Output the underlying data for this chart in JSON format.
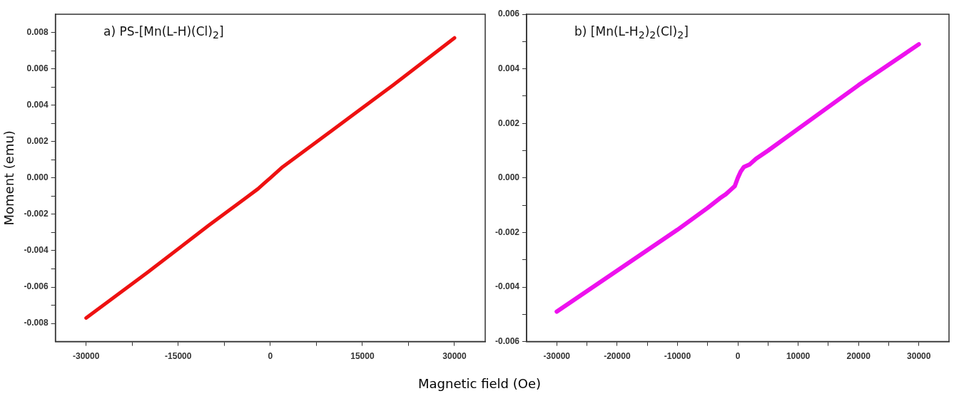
{
  "chart_data": [
    {
      "type": "line",
      "title": "a) PS-[Mn(L-H)(Cl)$_{2}$]",
      "xlabel": "Magnetic field (Oe)",
      "ylabel": "Moment (emu)",
      "x": [
        -30000,
        -20000,
        -10000,
        -4000,
        -2000,
        -1000,
        0,
        1000,
        2000,
        4000,
        10000,
        20000,
        30000
      ],
      "series": [
        {
          "color": "#ee1111",
          "values": [
            -0.0077,
            -0.0052,
            -0.0026,
            -0.0011,
            -0.0006,
            -0.0003,
            0,
            0.0003,
            0.0006,
            0.0011,
            0.0026,
            0.0051,
            0.0077
          ]
        }
      ],
      "xlim": [
        -35000,
        35000
      ],
      "xticks": [
        -30000,
        {
          "value": -22500,
          "label": null
        },
        -15000,
        {
          "value": -7500,
          "label": null
        },
        0,
        {
          "value": 7500,
          "label": null
        },
        15000,
        {
          "value": 22500,
          "label": null
        },
        30000
      ],
      "ylim": [
        -0.009,
        0.009
      ],
      "yticks": [
        {
          "value": -0.008,
          "label": "-0.008"
        },
        {
          "value": -0.007,
          "label": null
        },
        {
          "value": -0.006,
          "label": "-0.006"
        },
        {
          "value": -0.005,
          "label": null
        },
        {
          "value": -0.004,
          "label": "-0.004"
        },
        {
          "value": -0.003,
          "label": null
        },
        {
          "value": -0.002,
          "label": "-0.002"
        },
        {
          "value": -0.001,
          "label": null
        },
        {
          "value": 0,
          "label": "0.000"
        },
        {
          "value": 0.001,
          "label": null
        },
        {
          "value": 0.002,
          "label": "0.002"
        },
        {
          "value": 0.003,
          "label": null
        },
        {
          "value": 0.004,
          "label": "0.004"
        },
        {
          "value": 0.005,
          "label": null
        },
        {
          "value": 0.006,
          "label": "0.006"
        },
        {
          "value": 0.007,
          "label": null
        },
        {
          "value": 0.008,
          "label": "0.008"
        }
      ],
      "grid": false,
      "legend": false,
      "marker": "none",
      "line_style": "solid"
    },
    {
      "type": "line",
      "title": "b) [Mn(L-H$_{2}$)$_{2}$(Cl)$_{2}$]",
      "x": [
        -30000,
        -20000,
        -10000,
        -5000,
        -3000,
        -2000,
        -1000,
        -500,
        0,
        500,
        1000,
        2000,
        3000,
        5000,
        10000,
        20000,
        30000
      ],
      "series": [
        {
          "color": "#ee11ee",
          "values": [
            -0.0049,
            -0.0034,
            -0.0019,
            -0.0011,
            -0.00075,
            -0.0006,
            -0.0004,
            -0.0003,
            0,
            0.00024,
            0.0004,
            0.0005,
            0.0007,
            0.001,
            0.0018,
            0.0034,
            0.0049
          ]
        }
      ],
      "xlim": [
        -35000,
        35000
      ],
      "xticks": [
        -30000,
        {
          "value": -25000,
          "label": null
        },
        -20000,
        {
          "value": -15000,
          "label": null
        },
        -10000,
        {
          "value": -5000,
          "label": null
        },
        0,
        {
          "value": 5000,
          "label": null
        },
        10000,
        {
          "value": 15000,
          "label": null
        },
        20000,
        {
          "value": 25000,
          "label": null
        },
        30000
      ],
      "ylim": [
        -0.006,
        0.006
      ],
      "yticks": [
        {
          "value": -0.006,
          "label": "-0.006"
        },
        {
          "value": -0.005,
          "label": null
        },
        {
          "value": -0.004,
          "label": "-0.004"
        },
        {
          "value": -0.003,
          "label": null
        },
        {
          "value": -0.002,
          "label": "-0.002"
        },
        {
          "value": -0.001,
          "label": null
        },
        {
          "value": 0,
          "label": "0.000"
        },
        {
          "value": 0.001,
          "label": null
        },
        {
          "value": 0.002,
          "label": "0.002"
        },
        {
          "value": 0.003,
          "label": null
        },
        {
          "value": 0.004,
          "label": "0.004"
        },
        {
          "value": 0.005,
          "label": null
        },
        {
          "value": 0.006,
          "label": "0.006"
        }
      ],
      "grid": false,
      "legend": false,
      "marker": "none",
      "line_style": "solid"
    }
  ]
}
